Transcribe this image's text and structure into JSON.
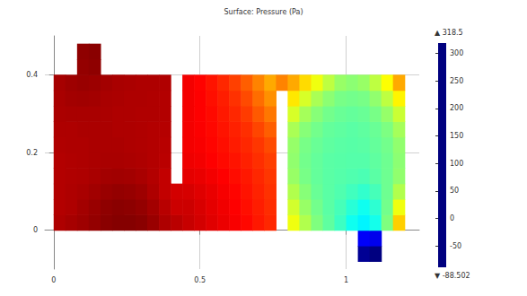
{
  "chart_data": {
    "type": "heatmap",
    "title": "Surface: Pressure (Pa)",
    "x": [
      0.02,
      0.06,
      0.1,
      0.14,
      0.18,
      0.22,
      0.26,
      0.3,
      0.34,
      0.38,
      0.42,
      0.46,
      0.5,
      0.54,
      0.58,
      0.62,
      0.66,
      0.7,
      0.74,
      0.78,
      0.82,
      0.86,
      0.9,
      0.94,
      0.98,
      1.02,
      1.06,
      1.1,
      1.14,
      1.18
    ],
    "y": [
      -0.06,
      -0.02,
      0.02,
      0.06,
      0.1,
      0.14,
      0.18,
      0.22,
      0.26,
      0.3,
      0.34,
      0.38,
      0.42,
      0.46
    ],
    "values": [
      [
        null,
        null,
        null,
        null,
        null,
        null,
        null,
        null,
        null,
        null,
        null,
        null,
        null,
        null,
        null,
        null,
        null,
        null,
        null,
        null,
        null,
        null,
        null,
        null,
        null,
        null,
        -80,
        -88,
        null,
        null
      ],
      [
        null,
        null,
        null,
        null,
        null,
        null,
        null,
        null,
        null,
        null,
        null,
        null,
        null,
        null,
        null,
        null,
        null,
        null,
        null,
        null,
        null,
        null,
        null,
        null,
        null,
        null,
        -40,
        -45,
        null,
        null
      ],
      [
        300,
        303,
        306,
        310,
        314,
        316,
        316,
        314,
        308,
        300,
        295,
        290,
        285,
        280,
        275,
        270,
        265,
        258,
        252,
        null,
        160,
        135,
        115,
        102,
        88,
        70,
        60,
        72,
        115,
        185
      ],
      [
        298,
        300,
        304,
        308,
        312,
        314,
        313,
        310,
        304,
        296,
        288,
        288,
        283,
        278,
        273,
        268,
        262,
        256,
        250,
        null,
        148,
        125,
        110,
        100,
        92,
        80,
        70,
        82,
        110,
        160
      ],
      [
        298,
        300,
        302,
        305,
        308,
        310,
        309,
        306,
        300,
        292,
        285,
        284,
        280,
        276,
        271,
        266,
        260,
        254,
        248,
        null,
        135,
        118,
        106,
        100,
        96,
        90,
        84,
        92,
        108,
        135
      ],
      [
        298,
        299,
        300,
        302,
        304,
        305,
        304,
        302,
        298,
        292,
        null,
        278,
        276,
        272,
        268,
        263,
        258,
        252,
        246,
        null,
        125,
        112,
        104,
        100,
        98,
        96,
        94,
        100,
        108,
        122
      ],
      [
        298,
        299,
        300,
        301,
        302,
        302,
        301,
        300,
        298,
        295,
        null,
        274,
        272,
        268,
        264,
        260,
        255,
        249,
        243,
        null,
        122,
        110,
        104,
        100,
        99,
        98,
        98,
        102,
        108,
        120
      ],
      [
        299,
        300,
        300,
        301,
        301,
        301,
        300,
        299,
        298,
        296,
        null,
        272,
        270,
        266,
        262,
        257,
        252,
        246,
        238,
        null,
        124,
        112,
        106,
        102,
        100,
        99,
        100,
        104,
        110,
        122
      ],
      [
        300,
        300,
        301,
        301,
        301,
        300,
        300,
        299,
        298,
        297,
        null,
        272,
        269,
        265,
        260,
        255,
        249,
        240,
        230,
        null,
        132,
        118,
        110,
        104,
        102,
        100,
        102,
        106,
        114,
        130
      ],
      [
        301,
        302,
        302,
        302,
        301,
        300,
        300,
        299,
        299,
        298,
        null,
        272,
        268,
        264,
        258,
        252,
        244,
        232,
        220,
        null,
        150,
        130,
        118,
        110,
        106,
        104,
        106,
        112,
        124,
        145
      ],
      [
        302,
        304,
        305,
        304,
        302,
        301,
        300,
        300,
        299,
        298,
        null,
        272,
        268,
        262,
        256,
        248,
        238,
        224,
        210,
        null,
        175,
        150,
        132,
        120,
        112,
        110,
        112,
        122,
        140,
        170
      ],
      [
        303,
        306,
        308,
        307,
        304,
        302,
        301,
        300,
        300,
        299,
        null,
        272,
        267,
        260,
        252,
        242,
        230,
        215,
        200,
        215,
        200,
        180,
        160,
        140,
        125,
        120,
        125,
        140,
        165,
        200
      ],
      [
        null,
        null,
        310,
        312,
        null,
        null,
        null,
        null,
        null,
        null,
        null,
        null,
        null,
        null,
        null,
        null,
        null,
        null,
        null,
        null,
        null,
        null,
        null,
        null,
        null,
        null,
        null,
        null,
        null,
        null
      ],
      [
        null,
        null,
        312,
        314,
        null,
        null,
        null,
        null,
        null,
        null,
        null,
        null,
        null,
        null,
        null,
        null,
        null,
        null,
        null,
        null,
        null,
        null,
        null,
        null,
        null,
        null,
        null,
        null,
        null,
        null
      ]
    ],
    "xlim": [
      -0.03,
      1.25
    ],
    "xticks": [
      0,
      0.5,
      1
    ],
    "ylim": [
      -0.1,
      0.5
    ],
    "yticks": [
      0,
      0.2,
      0.4
    ],
    "grid": true,
    "colorbar": {
      "range": [
        -88.502,
        318.5
      ],
      "ticks": [
        -50,
        0,
        50,
        100,
        150,
        200,
        250,
        300
      ],
      "max_label": "▲ 318.5",
      "min_label": "▼ -88.502"
    }
  }
}
